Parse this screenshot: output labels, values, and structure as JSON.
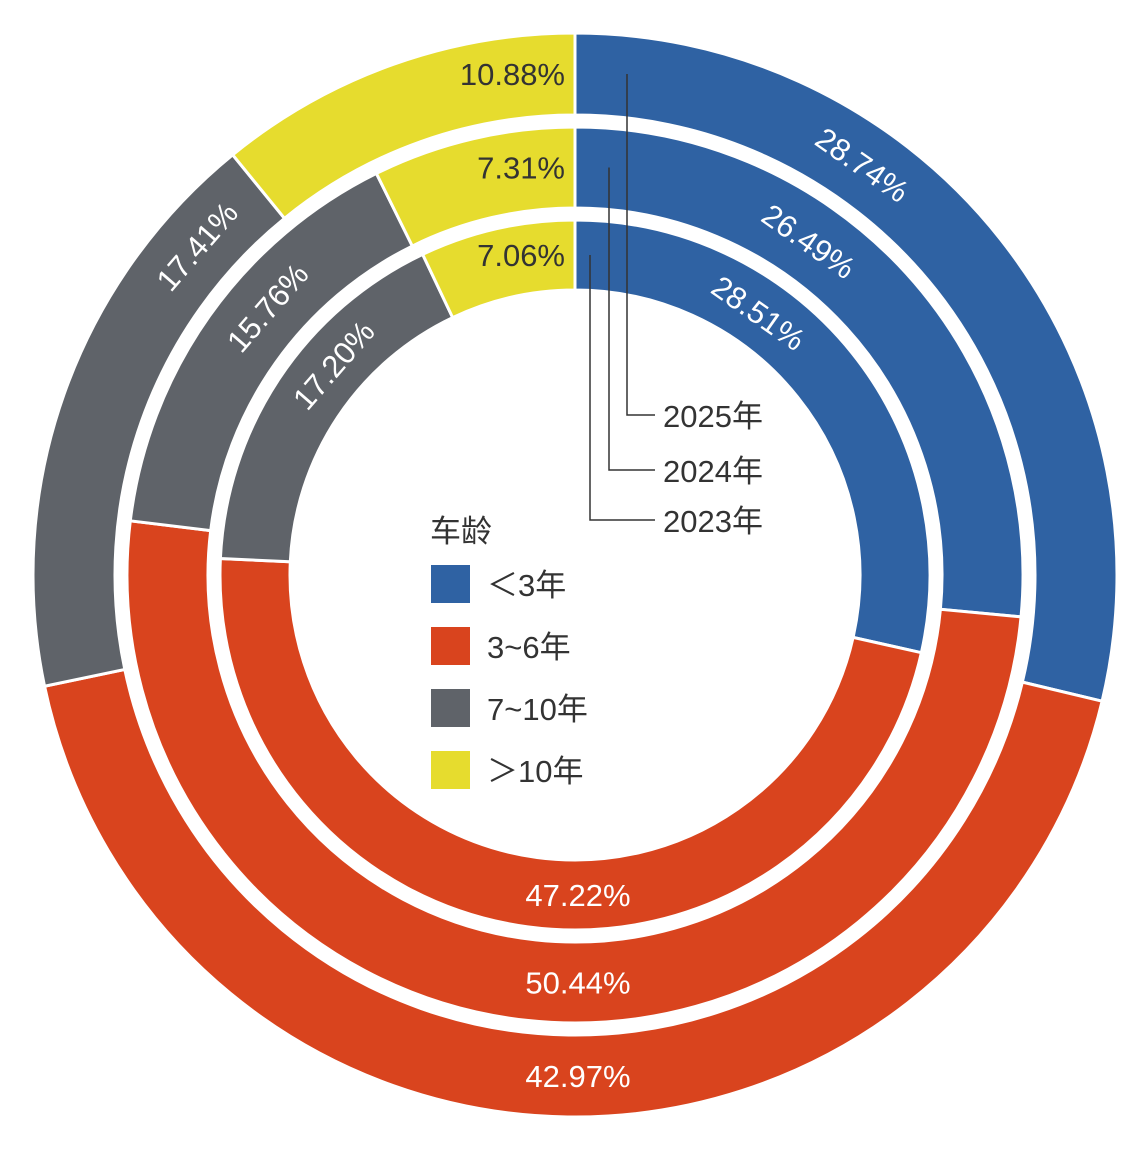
{
  "chart_data": {
    "type": "pie",
    "subtype": "multi-ring donut",
    "legend_title": "车龄",
    "legend_position": "center",
    "categories": [
      "＜3年",
      "3~6年",
      "7~10年",
      "＞10年"
    ],
    "colors": [
      "#2f62a3",
      "#d9441e",
      "#5f6369",
      "#e6dc2e"
    ],
    "series": [
      {
        "name": "2025年",
        "ring": "outer",
        "values": [
          28.74,
          42.97,
          17.41,
          10.88
        ],
        "labels": [
          "28.74%",
          "42.97%",
          "17.41%",
          "10.88%"
        ]
      },
      {
        "name": "2024年",
        "ring": "middle",
        "values": [
          26.49,
          50.44,
          15.76,
          7.31
        ],
        "labels": [
          "26.49%",
          "50.44%",
          "15.76%",
          "7.31%"
        ]
      },
      {
        "name": "2023年",
        "ring": "inner",
        "values": [
          28.51,
          47.22,
          17.2,
          7.06
        ],
        "labels": [
          "28.51%",
          "47.22%",
          "17.20%",
          "7.06%"
        ]
      }
    ]
  }
}
